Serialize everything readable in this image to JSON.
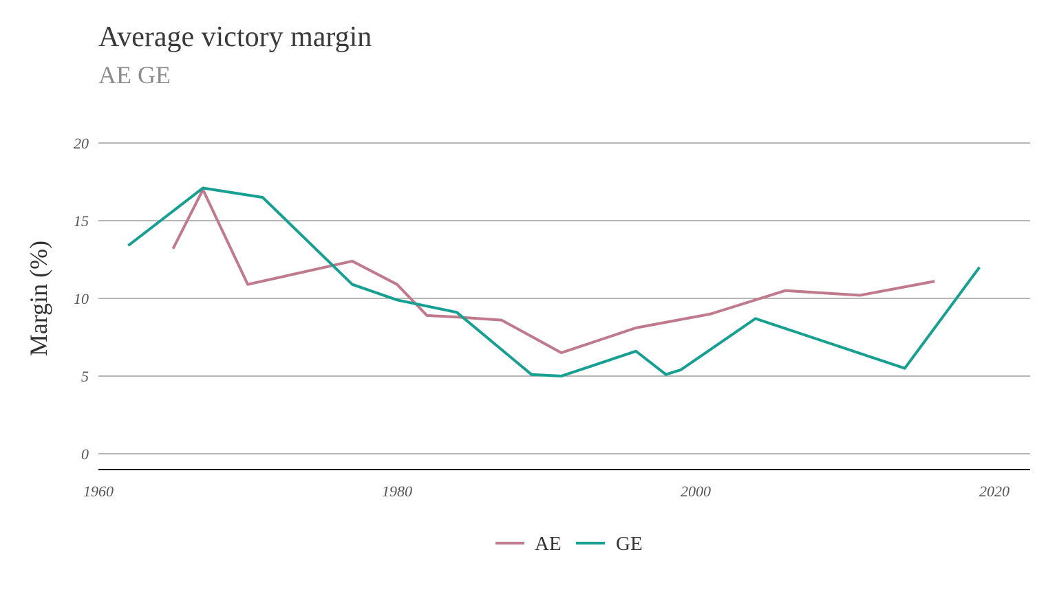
{
  "chart_data": {
    "type": "line",
    "title": "Average victory margin",
    "subtitle": "AE GE",
    "xlabel": "",
    "ylabel": "Margin (%)",
    "xlim": [
      1960,
      2021
    ],
    "ylim": [
      0,
      20
    ],
    "x_ticks": [
      "1960",
      "1980",
      "2000",
      "2020"
    ],
    "y_ticks": [
      "0",
      "5",
      "10",
      "15",
      "20"
    ],
    "grid": "horizontal",
    "legend_position": "bottom",
    "series": [
      {
        "name": "AE",
        "color": "#c07a8e",
        "x": [
          1965,
          1967,
          1970,
          1977,
          1980,
          1982,
          1984,
          1987,
          1991,
          1996,
          2001,
          2006,
          2011,
          2016
        ],
        "y": [
          13.2,
          17.0,
          10.9,
          12.4,
          10.9,
          8.9,
          8.8,
          8.6,
          6.5,
          8.1,
          9.0,
          10.5,
          10.2,
          11.1
        ]
      },
      {
        "name": "GE",
        "color": "#17a091",
        "x": [
          1962,
          1967,
          1971,
          1977,
          1980,
          1984,
          1989,
          1991,
          1996,
          1998,
          1999,
          2004,
          2009,
          2014,
          2019
        ],
        "y": [
          13.4,
          17.1,
          16.5,
          10.9,
          9.9,
          9.1,
          5.1,
          5.0,
          6.6,
          5.1,
          5.4,
          8.7,
          7.1,
          5.5,
          12.0
        ]
      }
    ]
  }
}
